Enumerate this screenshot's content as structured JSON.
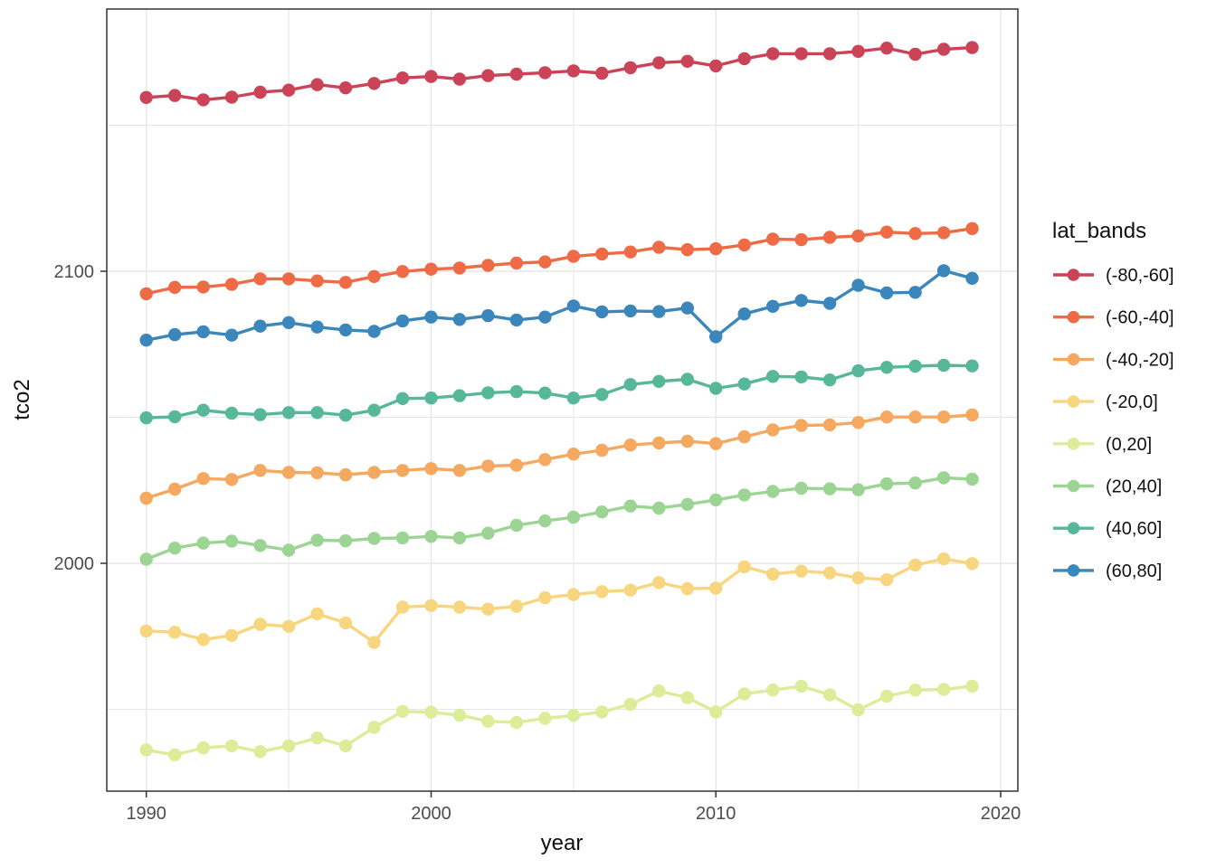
{
  "chart_data": {
    "type": "line",
    "title": "",
    "xlabel": "year",
    "ylabel": "tco2",
    "legend_title": "lat_bands",
    "legend_position": "right",
    "grid": true,
    "xlim": [
      1988.6,
      2020.6
    ],
    "ylim": [
      1921.8,
      2189.9
    ],
    "x_ticks": [
      1990,
      2000,
      2010,
      2020
    ],
    "x_tick_labels": [
      "1990",
      "2000",
      "2010",
      "2020"
    ],
    "x_minor_gridlines": [
      1995,
      2005,
      2015
    ],
    "y_ticks": [
      2000,
      2100
    ],
    "y_tick_labels": [
      "2000",
      "2100"
    ],
    "y_minor_gridlines": [
      1950,
      2050,
      2150
    ],
    "x": [
      1990,
      1991,
      1992,
      1993,
      1994,
      1995,
      1996,
      1997,
      1998,
      1999,
      2000,
      2001,
      2002,
      2003,
      2004,
      2005,
      2006,
      2007,
      2008,
      2009,
      2010,
      2011,
      2012,
      2013,
      2014,
      2015,
      2016,
      2017,
      2018,
      2019
    ],
    "series": [
      {
        "name": "(-80,-60]",
        "color": "#cb4357",
        "values": [
          2159.5,
          2160.2,
          2158.7,
          2159.6,
          2161.3,
          2162.0,
          2163.9,
          2162.8,
          2164.3,
          2166.2,
          2166.7,
          2165.8,
          2167.0,
          2167.5,
          2168.0,
          2168.6,
          2167.8,
          2169.7,
          2171.4,
          2171.9,
          2170.3,
          2172.8,
          2174.5,
          2174.5,
          2174.5,
          2175.3,
          2176.4,
          2174.3,
          2176.0,
          2176.6
        ]
      },
      {
        "name": "(-60,-40]",
        "color": "#ee6b45",
        "values": [
          2092.3,
          2094.5,
          2094.6,
          2095.5,
          2097.4,
          2097.4,
          2096.7,
          2096.2,
          2098.2,
          2099.9,
          2100.7,
          2101.1,
          2102.0,
          2102.8,
          2103.2,
          2105.1,
          2105.9,
          2106.6,
          2108.2,
          2107.4,
          2107.7,
          2109.0,
          2111.0,
          2110.8,
          2111.6,
          2112.1,
          2113.4,
          2112.9,
          2113.2,
          2114.6
        ]
      },
      {
        "name": "(-40,-20]",
        "color": "#f5a85f",
        "values": [
          2022.3,
          2025.4,
          2029.0,
          2028.7,
          2031.8,
          2031.1,
          2031.0,
          2030.3,
          2031.1,
          2031.8,
          2032.4,
          2031.8,
          2033.3,
          2033.6,
          2035.5,
          2037.4,
          2038.7,
          2040.5,
          2041.2,
          2041.8,
          2041.0,
          2043.3,
          2045.7,
          2047.2,
          2047.4,
          2048.2,
          2050.1,
          2050.1,
          2050.1,
          2050.8
        ]
      },
      {
        "name": "(-20,0]",
        "color": "#f8d680",
        "values": [
          1976.8,
          1976.4,
          1973.9,
          1975.3,
          1979.1,
          1978.4,
          1982.7,
          1979.6,
          1972.9,
          1985.0,
          1985.5,
          1985.0,
          1984.3,
          1985.3,
          1988.2,
          1989.3,
          1990.3,
          1990.8,
          1993.4,
          1991.3,
          1991.5,
          1998.8,
          1996.3,
          1997.3,
          1996.7,
          1995.0,
          1994.4,
          1999.4,
          2001.5,
          1999.9
        ]
      },
      {
        "name": "(0,20]",
        "color": "#dcec98",
        "values": [
          1936.1,
          1934.4,
          1936.8,
          1937.5,
          1935.5,
          1937.5,
          1940.2,
          1937.5,
          1943.8,
          1949.3,
          1949.0,
          1948.0,
          1945.9,
          1945.5,
          1946.9,
          1947.9,
          1949.1,
          1951.7,
          1956.3,
          1954.0,
          1949.1,
          1955.3,
          1956.6,
          1957.9,
          1955.0,
          1949.8,
          1954.5,
          1956.6,
          1956.8,
          1957.9
        ]
      },
      {
        "name": "(20,40]",
        "color": "#9cd494",
        "values": [
          2001.4,
          2005.2,
          2006.9,
          2007.6,
          2006.1,
          2004.5,
          2007.9,
          2007.7,
          2008.5,
          2008.7,
          2009.2,
          2008.7,
          2010.3,
          2013.0,
          2014.5,
          2015.8,
          2017.6,
          2019.6,
          2018.9,
          2020.2,
          2021.7,
          2023.4,
          2024.6,
          2025.7,
          2025.5,
          2025.2,
          2027.2,
          2027.5,
          2029.3,
          2028.8
        ]
      },
      {
        "name": "(40,60]",
        "color": "#56b898",
        "values": [
          2049.8,
          2050.2,
          2052.4,
          2051.4,
          2050.9,
          2051.6,
          2051.6,
          2050.7,
          2052.4,
          2056.4,
          2056.6,
          2057.4,
          2058.4,
          2058.8,
          2058.3,
          2056.6,
          2057.8,
          2061.2,
          2062.3,
          2063.0,
          2059.9,
          2061.4,
          2064.0,
          2063.8,
          2062.8,
          2065.9,
          2067.1,
          2067.5,
          2067.8,
          2067.6
        ]
      },
      {
        "name": "(60,80]",
        "color": "#3b86ba",
        "values": [
          2076.4,
          2078.3,
          2079.3,
          2078.1,
          2081.2,
          2082.4,
          2080.9,
          2079.9,
          2079.4,
          2083.0,
          2084.3,
          2083.5,
          2084.8,
          2083.3,
          2084.3,
          2088.1,
          2086.1,
          2086.4,
          2086.2,
          2087.4,
          2077.6,
          2085.4,
          2088.0,
          2090.0,
          2089.0,
          2095.2,
          2092.6,
          2092.8,
          2100.2,
          2097.6
        ]
      }
    ],
    "colors": {
      "background": "#ffffff",
      "grid": "#e7e7e7",
      "panel_border": "#333333",
      "tick_mark": "#333333",
      "tick_text": "#4d4d4d",
      "title_text": "#111111"
    }
  }
}
